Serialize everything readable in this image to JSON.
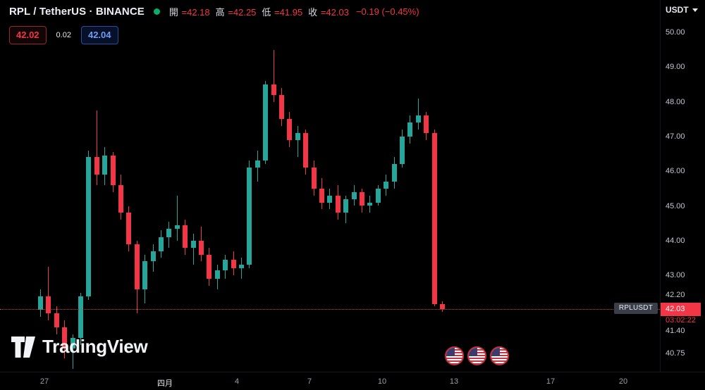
{
  "header": {
    "symbol_title": "RPL / TetherUS · BINANCE",
    "market_status": "market-open",
    "ohlc": [
      {
        "label": "開",
        "value": "=42.18"
      },
      {
        "label": "高",
        "value": "=42.25"
      },
      {
        "label": "低",
        "value": "=41.95"
      },
      {
        "label": "收",
        "value": "=42.03"
      }
    ],
    "change": "−0.19 (−0.45%)",
    "currency": "USDT"
  },
  "quote": {
    "bid": "42.02",
    "spread": "0.02",
    "ask": "42.04"
  },
  "price_scale": {
    "labels": [
      "50.00",
      "49.00",
      "48.00",
      "47.00",
      "46.00",
      "45.00",
      "44.00",
      "43.00",
      "42.20",
      "41.40",
      "40.75"
    ],
    "badge": "42.03",
    "countdown": "03:02:22",
    "symbol_label": "RPLUSDT"
  },
  "time_scale": [
    {
      "text": "27",
      "index": 0.5
    },
    {
      "text": "四月",
      "index": 15.5,
      "major": true
    },
    {
      "text": "4",
      "index": 24.5
    },
    {
      "text": "7",
      "index": 33.5
    },
    {
      "text": "10",
      "index": 42.5
    },
    {
      "text": "13",
      "index": 51.5
    },
    {
      "text": "17",
      "index": 63.5
    },
    {
      "text": "20",
      "index": 72.5
    }
  ],
  "watermark": {
    "brand": "TradingView"
  },
  "events": [
    {
      "name": "us-flag-event"
    },
    {
      "name": "us-flag-event"
    },
    {
      "name": "us-flag-event"
    }
  ],
  "colors": {
    "background": "#000000",
    "up": "#26a69a",
    "down": "#f23645",
    "text": "#d1d4dc",
    "accent_blue": "#2962ff"
  },
  "chart_data": {
    "type": "candlestick",
    "title": "RPL / TetherUS · BINANCE",
    "symbol": "RPLUSDT",
    "exchange": "BINANCE",
    "up_color": "#26a69a",
    "down_color": "#f23645",
    "price_line": 42.03,
    "last_candle": {
      "open": 42.18,
      "high": 42.25,
      "low": 41.95,
      "close": 42.03,
      "change": -0.19,
      "change_pct": -0.45
    },
    "visible_price_range": {
      "min": 40.4,
      "max": 50.1
    },
    "visible_dates": [
      "Mar 27",
      "Apr 1",
      "Apr 4",
      "Apr 7",
      "Apr 10",
      "Apr 13",
      "Apr 17",
      "Apr 20"
    ],
    "candles": [
      {
        "o": 42.0,
        "h": 42.6,
        "l": 41.8,
        "c": 42.4
      },
      {
        "o": 42.4,
        "h": 43.25,
        "l": 41.7,
        "c": 41.9
      },
      {
        "o": 41.9,
        "h": 42.1,
        "l": 41.3,
        "c": 41.5
      },
      {
        "o": 41.5,
        "h": 41.7,
        "l": 40.6,
        "c": 40.9
      },
      {
        "o": 40.9,
        "h": 41.3,
        "l": 40.3,
        "c": 41.2
      },
      {
        "o": 41.2,
        "h": 42.5,
        "l": 41.0,
        "c": 42.4
      },
      {
        "o": 42.4,
        "h": 46.6,
        "l": 42.3,
        "c": 46.4
      },
      {
        "o": 46.4,
        "h": 47.75,
        "l": 45.6,
        "c": 45.9
      },
      {
        "o": 45.9,
        "h": 46.7,
        "l": 45.6,
        "c": 46.45
      },
      {
        "o": 46.45,
        "h": 46.55,
        "l": 45.4,
        "c": 45.6
      },
      {
        "o": 45.6,
        "h": 45.9,
        "l": 44.6,
        "c": 44.8
      },
      {
        "o": 44.8,
        "h": 45.0,
        "l": 43.7,
        "c": 43.9
      },
      {
        "o": 43.9,
        "h": 44.0,
        "l": 41.9,
        "c": 42.6
      },
      {
        "o": 42.6,
        "h": 43.6,
        "l": 42.2,
        "c": 43.4
      },
      {
        "o": 43.4,
        "h": 43.9,
        "l": 43.1,
        "c": 43.7
      },
      {
        "o": 43.7,
        "h": 44.3,
        "l": 43.5,
        "c": 44.1
      },
      {
        "o": 44.1,
        "h": 44.55,
        "l": 43.8,
        "c": 44.35
      },
      {
        "o": 44.35,
        "h": 45.3,
        "l": 44.0,
        "c": 44.45
      },
      {
        "o": 44.45,
        "h": 44.6,
        "l": 43.6,
        "c": 43.8
      },
      {
        "o": 43.8,
        "h": 44.2,
        "l": 43.3,
        "c": 44.0
      },
      {
        "o": 44.0,
        "h": 44.4,
        "l": 43.4,
        "c": 43.6
      },
      {
        "o": 43.6,
        "h": 43.8,
        "l": 42.7,
        "c": 42.9
      },
      {
        "o": 42.9,
        "h": 43.3,
        "l": 42.6,
        "c": 43.15
      },
      {
        "o": 43.15,
        "h": 43.6,
        "l": 42.9,
        "c": 43.45
      },
      {
        "o": 43.45,
        "h": 43.7,
        "l": 43.0,
        "c": 43.2
      },
      {
        "o": 43.2,
        "h": 43.5,
        "l": 42.9,
        "c": 43.3
      },
      {
        "o": 43.3,
        "h": 46.3,
        "l": 43.2,
        "c": 46.1
      },
      {
        "o": 46.1,
        "h": 46.6,
        "l": 45.7,
        "c": 46.3
      },
      {
        "o": 46.3,
        "h": 48.6,
        "l": 46.2,
        "c": 48.5
      },
      {
        "o": 48.5,
        "h": 49.5,
        "l": 48.0,
        "c": 48.2
      },
      {
        "o": 48.2,
        "h": 48.4,
        "l": 47.3,
        "c": 47.5
      },
      {
        "o": 47.5,
        "h": 47.7,
        "l": 46.7,
        "c": 46.9
      },
      {
        "o": 46.9,
        "h": 47.3,
        "l": 46.4,
        "c": 47.1
      },
      {
        "o": 47.1,
        "h": 47.2,
        "l": 45.9,
        "c": 46.1
      },
      {
        "o": 46.1,
        "h": 46.3,
        "l": 45.3,
        "c": 45.5
      },
      {
        "o": 45.5,
        "h": 45.8,
        "l": 44.9,
        "c": 45.1
      },
      {
        "o": 45.1,
        "h": 45.5,
        "l": 44.9,
        "c": 45.3
      },
      {
        "o": 45.3,
        "h": 45.6,
        "l": 44.6,
        "c": 44.8
      },
      {
        "o": 44.8,
        "h": 45.3,
        "l": 44.5,
        "c": 45.2
      },
      {
        "o": 45.2,
        "h": 45.6,
        "l": 45.0,
        "c": 45.4
      },
      {
        "o": 45.4,
        "h": 45.5,
        "l": 44.8,
        "c": 45.0
      },
      {
        "o": 45.0,
        "h": 45.3,
        "l": 44.8,
        "c": 45.1
      },
      {
        "o": 45.1,
        "h": 45.6,
        "l": 45.0,
        "c": 45.5
      },
      {
        "o": 45.5,
        "h": 45.9,
        "l": 45.3,
        "c": 45.7
      },
      {
        "o": 45.7,
        "h": 46.4,
        "l": 45.5,
        "c": 46.2
      },
      {
        "o": 46.2,
        "h": 47.2,
        "l": 46.1,
        "c": 47.0
      },
      {
        "o": 47.0,
        "h": 47.6,
        "l": 46.8,
        "c": 47.4
      },
      {
        "o": 47.4,
        "h": 48.1,
        "l": 47.2,
        "c": 47.6
      },
      {
        "o": 47.6,
        "h": 47.7,
        "l": 46.9,
        "c": 47.1
      },
      {
        "o": 47.1,
        "h": 47.2,
        "l": 42.1,
        "c": 42.18
      },
      {
        "o": 42.18,
        "h": 42.25,
        "l": 41.95,
        "c": 42.03
      }
    ]
  }
}
